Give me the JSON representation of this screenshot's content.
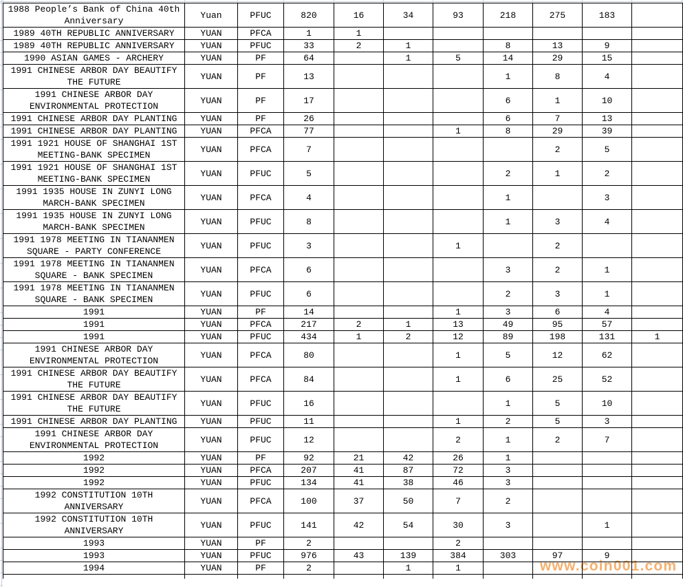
{
  "watermark": {
    "text": "www.coin001.com",
    "color": "#F2953C"
  },
  "table": {
    "rows": [
      {
        "desc": "1988 People’s Bank of China 40th Anniversary",
        "unit": "Yuan",
        "grade": "PFUC",
        "values": [
          "820",
          "16",
          "34",
          "93",
          "218",
          "275",
          "183",
          ""
        ]
      },
      {
        "desc": "1989 40TH REPUBLIC ANNIVERSARY",
        "unit": "YUAN",
        "grade": "PFCA",
        "values": [
          "1",
          "1",
          "",
          "",
          "",
          "",
          "",
          ""
        ]
      },
      {
        "desc": "1989 40TH REPUBLIC ANNIVERSARY",
        "unit": "YUAN",
        "grade": "PFUC",
        "values": [
          "33",
          "2",
          "1",
          "",
          "8",
          "13",
          "9",
          ""
        ]
      },
      {
        "desc": "1990 ASIAN GAMES - ARCHERY",
        "unit": "YUAN",
        "grade": "PF",
        "values": [
          "64",
          "",
          "1",
          "5",
          "14",
          "29",
          "15",
          ""
        ]
      },
      {
        "desc": "1991 CHINESE ARBOR DAY BEAUTIFY THE FUTURE",
        "unit": "YUAN",
        "grade": "PF",
        "values": [
          "13",
          "",
          "",
          "",
          "1",
          "8",
          "4",
          ""
        ]
      },
      {
        "desc": "1991 CHINESE ARBOR DAY ENVIRONMENTAL PROTECTION",
        "unit": "YUAN",
        "grade": "PF",
        "values": [
          "17",
          "",
          "",
          "",
          "6",
          "1",
          "10",
          ""
        ]
      },
      {
        "desc": "1991 CHINESE ARBOR DAY PLANTING",
        "unit": "YUAN",
        "grade": "PF",
        "values": [
          "26",
          "",
          "",
          "",
          "6",
          "7",
          "13",
          ""
        ]
      },
      {
        "desc": "1991 CHINESE ARBOR DAY PLANTING",
        "unit": "YUAN",
        "grade": "PFCA",
        "values": [
          "77",
          "",
          "",
          "1",
          "8",
          "29",
          "39",
          ""
        ]
      },
      {
        "desc": "1991 1921 HOUSE OF SHANGHAI 1ST MEETING-BANK SPECIMEN",
        "unit": "YUAN",
        "grade": "PFCA",
        "values": [
          "7",
          "",
          "",
          "",
          "",
          "2",
          "5",
          ""
        ]
      },
      {
        "desc": "1991 1921 HOUSE OF SHANGHAI 1ST MEETING-BANK SPECIMEN",
        "unit": "YUAN",
        "grade": "PFUC",
        "values": [
          "5",
          "",
          "",
          "",
          "2",
          "1",
          "2",
          ""
        ]
      },
      {
        "desc": "1991 1935 HOUSE IN ZUNYI LONG MARCH-BANK SPECIMEN",
        "unit": "YUAN",
        "grade": "PFCA",
        "values": [
          "4",
          "",
          "",
          "",
          "1",
          "",
          "3",
          ""
        ]
      },
      {
        "desc": "1991 1935 HOUSE IN ZUNYI LONG MARCH-BANK SPECIMEN",
        "unit": "YUAN",
        "grade": "PFUC",
        "values": [
          "8",
          "",
          "",
          "",
          "1",
          "3",
          "4",
          ""
        ]
      },
      {
        "desc": "1991 1978 MEETING IN TIANANMEN SQUARE - PARTY CONFERENCE",
        "unit": "YUAN",
        "grade": "PFUC",
        "values": [
          "3",
          "",
          "",
          "1",
          "",
          "2",
          "",
          ""
        ]
      },
      {
        "desc": "1991 1978 MEETING IN TIANANMEN SQUARE - BANK SPECIMEN",
        "unit": "YUAN",
        "grade": "PFCA",
        "values": [
          "6",
          "",
          "",
          "",
          "3",
          "2",
          "1",
          ""
        ]
      },
      {
        "desc": "1991 1978 MEETING IN TIANANMEN SQUARE - BANK SPECIMEN",
        "unit": "YUAN",
        "grade": "PFUC",
        "values": [
          "6",
          "",
          "",
          "",
          "2",
          "3",
          "1",
          ""
        ]
      },
      {
        "desc": "1991",
        "unit": "YUAN",
        "grade": "PF",
        "values": [
          "14",
          "",
          "",
          "1",
          "3",
          "6",
          "4",
          ""
        ]
      },
      {
        "desc": "1991",
        "unit": "YUAN",
        "grade": "PFCA",
        "values": [
          "217",
          "2",
          "1",
          "13",
          "49",
          "95",
          "57",
          ""
        ]
      },
      {
        "desc": "1991",
        "unit": "YUAN",
        "grade": "PFUC",
        "values": [
          "434",
          "1",
          "2",
          "12",
          "89",
          "198",
          "131",
          "1"
        ]
      },
      {
        "desc": "1991 CHINESE ARBOR DAY ENVIRONMENTAL PROTECTION",
        "unit": "YUAN",
        "grade": "PFCA",
        "values": [
          "80",
          "",
          "",
          "1",
          "5",
          "12",
          "62",
          ""
        ]
      },
      {
        "desc": "1991 CHINESE ARBOR DAY BEAUTIFY THE FUTURE",
        "unit": "YUAN",
        "grade": "PFCA",
        "values": [
          "84",
          "",
          "",
          "1",
          "6",
          "25",
          "52",
          ""
        ]
      },
      {
        "desc": "1991 CHINESE ARBOR DAY BEAUTIFY THE FUTURE",
        "unit": "YUAN",
        "grade": "PFUC",
        "values": [
          "16",
          "",
          "",
          "",
          "1",
          "5",
          "10",
          ""
        ]
      },
      {
        "desc": "1991 CHINESE ARBOR DAY PLANTING",
        "unit": "YUAN",
        "grade": "PFUC",
        "values": [
          "11",
          "",
          "",
          "1",
          "2",
          "5",
          "3",
          ""
        ]
      },
      {
        "desc": "1991 CHINESE ARBOR DAY ENVIRONMENTAL PROTECTION",
        "unit": "YUAN",
        "grade": "PFUC",
        "values": [
          "12",
          "",
          "",
          "2",
          "1",
          "2",
          "7",
          ""
        ]
      },
      {
        "desc": "1992",
        "unit": "YUAN",
        "grade": "PF",
        "values": [
          "92",
          "21",
          "42",
          "26",
          "1",
          "",
          "",
          ""
        ]
      },
      {
        "desc": "1992",
        "unit": "YUAN",
        "grade": "PFCA",
        "values": [
          "207",
          "41",
          "87",
          "72",
          "3",
          "",
          "",
          ""
        ]
      },
      {
        "desc": "1992",
        "unit": "YUAN",
        "grade": "PFUC",
        "values": [
          "134",
          "41",
          "38",
          "46",
          "3",
          "",
          "",
          ""
        ]
      },
      {
        "desc": "1992 CONSTITUTION 10TH ANNIVERSARY",
        "unit": "YUAN",
        "grade": "PFCA",
        "values": [
          "100",
          "37",
          "50",
          "7",
          "2",
          "",
          "",
          ""
        ]
      },
      {
        "desc": "1992 CONSTITUTION 10TH ANNIVERSARY",
        "unit": "YUAN",
        "grade": "PFUC",
        "values": [
          "141",
          "42",
          "54",
          "30",
          "3",
          "",
          "1",
          ""
        ]
      },
      {
        "desc": "1993",
        "unit": "YUAN",
        "grade": "PF",
        "values": [
          "2",
          "",
          "",
          "2",
          "",
          "",
          "",
          ""
        ]
      },
      {
        "desc": "1993",
        "unit": "YUAN",
        "grade": "PFUC",
        "values": [
          "976",
          "43",
          "139",
          "384",
          "303",
          "97",
          "9",
          ""
        ]
      },
      {
        "desc": "1994",
        "unit": "YUAN",
        "grade": "PF",
        "values": [
          "2",
          "",
          "1",
          "1",
          "",
          "",
          "",
          ""
        ]
      }
    ]
  }
}
